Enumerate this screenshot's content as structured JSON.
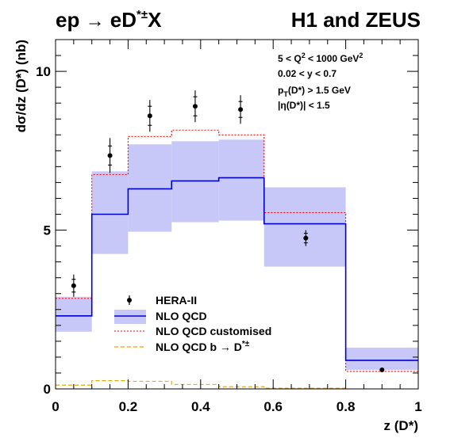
{
  "chart_data": {
    "type": "step-histogram",
    "title_left": "ep → eD*±X",
    "title_right": "H1 and ZEUS",
    "xlabel": "z (D*)",
    "ylabel": "dσ/dz (D*) (nb)",
    "xlim": [
      0,
      1
    ],
    "ylim": [
      0,
      11
    ],
    "x_ticks": [
      0,
      0.2,
      0.4,
      0.6,
      0.8,
      1
    ],
    "x_tick_labels": [
      "0",
      "0.2",
      "0.4",
      "0.6",
      "0.8",
      "1"
    ],
    "y_ticks": [
      0,
      5,
      10
    ],
    "y_tick_labels": [
      "0",
      "5",
      "10"
    ],
    "annotations": [
      "5 < Q² < 1000 GeV²",
      "0.02 < y < 0.7",
      "p_T(D*) > 1.5 GeV",
      "|η(D*)| < 1.5"
    ],
    "bin_edges": [
      0,
      0.1,
      0.2,
      0.32,
      0.45,
      0.575,
      0.8,
      1.0
    ],
    "series": [
      {
        "name": "HERA-II",
        "kind": "points",
        "color": "#000000",
        "x": [
          0.05,
          0.15,
          0.26,
          0.385,
          0.51,
          0.69,
          0.9
        ],
        "y": [
          3.25,
          7.35,
          8.6,
          8.9,
          8.8,
          4.75,
          0.6
        ],
        "err_stat": [
          0.2,
          0.3,
          0.3,
          0.3,
          0.25,
          0.15,
          0.03
        ],
        "err_tot": [
          0.35,
          0.55,
          0.5,
          0.5,
          0.45,
          0.25,
          0.05
        ]
      },
      {
        "name": "NLO QCD",
        "kind": "step-band",
        "color": "#0000cc",
        "band_color": "#c8c8f8",
        "values": [
          2.3,
          5.5,
          6.3,
          6.55,
          6.65,
          5.2,
          0.9
        ],
        "band_low": [
          1.8,
          4.25,
          4.95,
          5.25,
          5.3,
          3.85,
          0.6
        ],
        "band_high": [
          2.9,
          6.85,
          7.7,
          7.8,
          7.85,
          6.35,
          1.3
        ]
      },
      {
        "name": "NLO QCD customised",
        "kind": "step",
        "color": "#ff0000",
        "dash": "2,2",
        "values": [
          2.85,
          6.75,
          7.95,
          8.15,
          8.0,
          5.55,
          0.55
        ]
      },
      {
        "name": "NLO QCD b → D*±",
        "kind": "step",
        "color": "#e8a000",
        "dash": "5,3",
        "values": [
          0.12,
          0.26,
          0.24,
          0.14,
          0.07,
          0.02,
          0.0
        ]
      }
    ],
    "legend_position": "lower-left"
  }
}
